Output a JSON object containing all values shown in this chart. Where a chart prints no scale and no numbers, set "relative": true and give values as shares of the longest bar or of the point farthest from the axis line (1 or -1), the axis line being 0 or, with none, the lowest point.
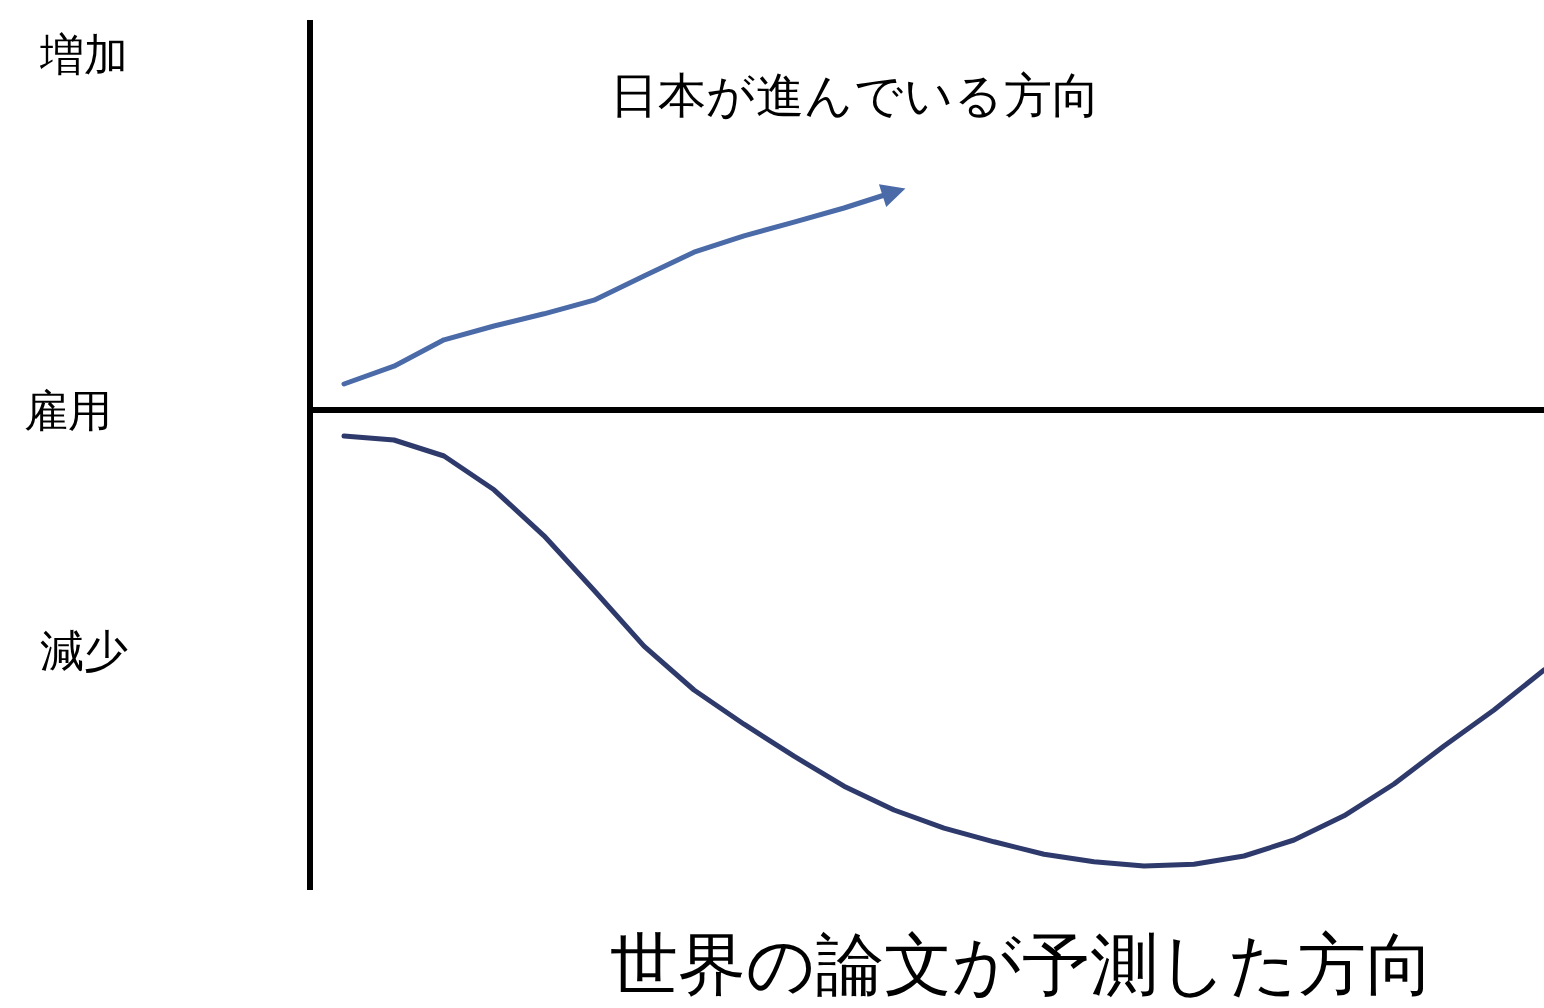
{
  "chart_data": {
    "type": "line",
    "relative": true,
    "ylabel": "雇用",
    "annotations": [
      "増加",
      "減少"
    ],
    "categories": [
      null,
      null,
      null,
      null,
      null,
      null,
      null,
      null,
      null,
      null,
      null,
      null,
      null,
      null,
      null,
      null,
      null,
      null,
      null,
      null,
      null,
      null,
      null,
      null,
      null
    ],
    "series": [
      {
        "name": "日本が進んでいる方向",
        "color": "#4a6aa8",
        "values": [
          0.057,
          0.096,
          0.154,
          0.184,
          0.211,
          0.241,
          0.294,
          0.346,
          0.382,
          0.412,
          0.443,
          0.478,
          null,
          null,
          null,
          null,
          null,
          null,
          null,
          null,
          null,
          null,
          null,
          null,
          null
        ]
      },
      {
        "name": "世界の論文が予測した方向",
        "color": "#2e3a6b",
        "values": [
          -0.057,
          -0.066,
          -0.101,
          -0.175,
          -0.276,
          -0.395,
          -0.518,
          -0.614,
          -0.689,
          -0.759,
          -0.825,
          -0.877,
          -0.917,
          -0.947,
          -0.974,
          -0.991,
          -1,
          -0.996,
          -0.978,
          -0.943,
          -0.89,
          -0.82,
          -0.737,
          -0.658,
          -0.57
        ]
      }
    ]
  }
}
